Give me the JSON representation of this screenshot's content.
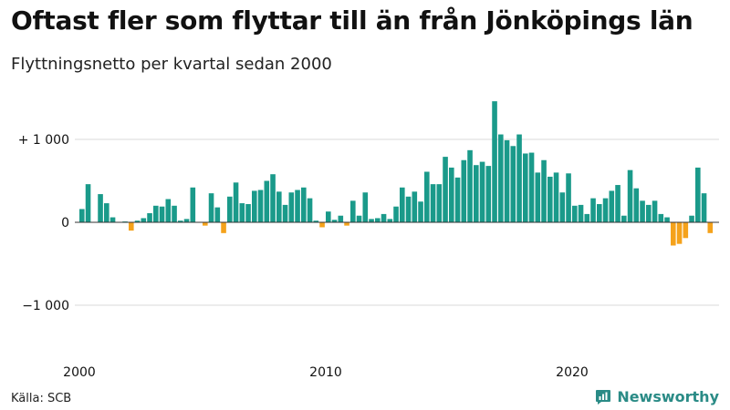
{
  "header": {
    "title": "Oftast fler som flyttar till än från Jönköpings län",
    "subtitle": "Flyttningsnetto per kvartal sedan 2000"
  },
  "footer": {
    "source": "Källa: SCB",
    "brand": "Newsworthy"
  },
  "colors": {
    "positive": "#1a9a8a",
    "negative": "#f5a21b",
    "grid": "#d9d9d9",
    "brand": "#2a8b86"
  },
  "chart_data": {
    "type": "bar",
    "title": "Oftast fler som flyttar till än från Jönköpings län",
    "subtitle": "Flyttningsnetto per kvartal sedan 2000",
    "x_start": "2000 Q1",
    "x_ticks": [
      "2000",
      "2010",
      "2020"
    ],
    "y_ticks": [
      {
        "value": 1000,
        "label": "+ 1 000"
      },
      {
        "value": 0,
        "label": "0"
      },
      {
        "value": -1000,
        "label": "−1 000"
      }
    ],
    "ylim": [
      -1500,
      1500
    ],
    "grid": true,
    "legend": "none",
    "values": [
      160,
      460,
      0,
      340,
      230,
      60,
      0,
      10,
      -100,
      20,
      50,
      110,
      200,
      190,
      280,
      200,
      20,
      40,
      420,
      0,
      -40,
      350,
      180,
      -130,
      310,
      480,
      230,
      220,
      380,
      390,
      500,
      580,
      370,
      210,
      360,
      390,
      420,
      290,
      20,
      -60,
      130,
      30,
      80,
      -40,
      260,
      80,
      360,
      40,
      50,
      100,
      40,
      190,
      420,
      310,
      370,
      250,
      610,
      460,
      460,
      790,
      660,
      540,
      750,
      870,
      690,
      730,
      680,
      1460,
      1060,
      990,
      920,
      1060,
      830,
      840,
      600,
      750,
      550,
      600,
      360,
      590,
      200,
      210,
      100,
      290,
      220,
      290,
      380,
      450,
      80,
      630,
      410,
      260,
      210,
      260,
      100,
      60,
      -280,
      -260,
      -190,
      80,
      660,
      350,
      -130
    ]
  }
}
